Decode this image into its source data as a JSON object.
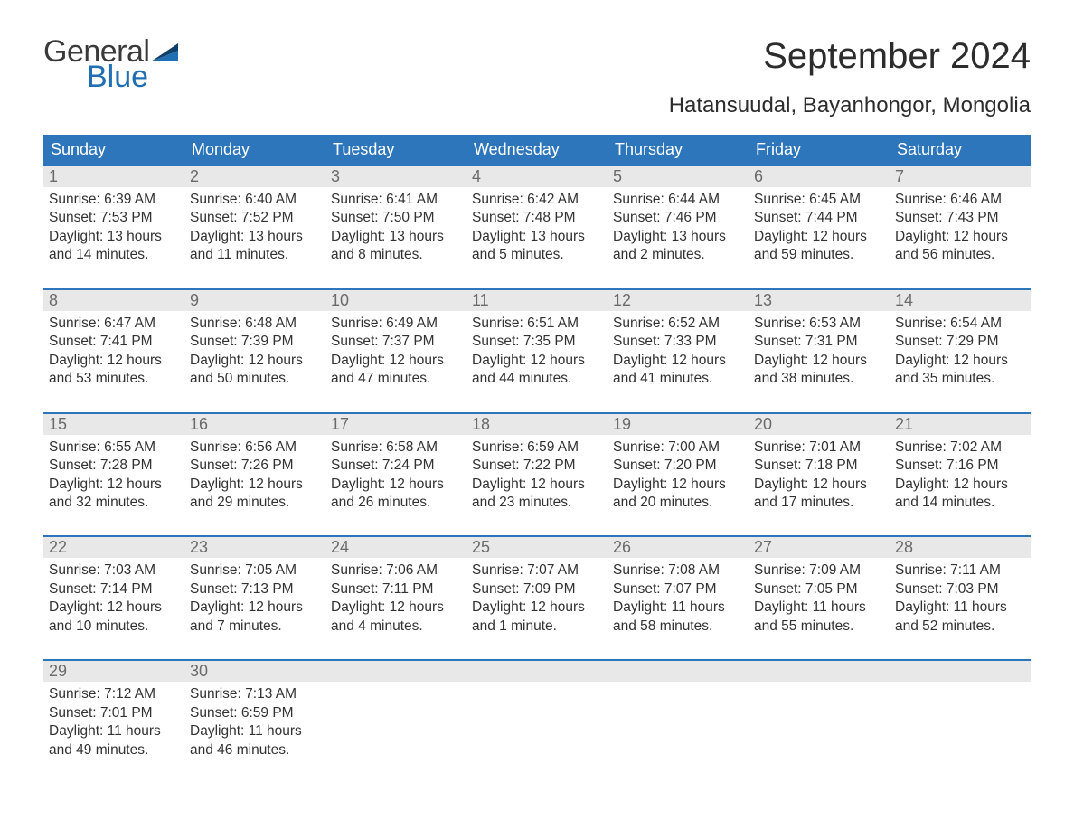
{
  "logo": {
    "general": "General",
    "blue": "Blue"
  },
  "title": "September 2024",
  "location": "Hatansuudal, Bayanhongor, Mongolia",
  "weekdays": [
    "Sunday",
    "Monday",
    "Tuesday",
    "Wednesday",
    "Thursday",
    "Friday",
    "Saturday"
  ],
  "colors": {
    "header_bg": "#2d76bb",
    "accent_blue": "#1f6fb2",
    "daynum_bg": "#e8e8e8",
    "text": "#323232"
  },
  "layout": {
    "columns": 7,
    "rows": 5,
    "cell_border_top": "#2d76bb"
  },
  "days": [
    {
      "n": "1",
      "sunrise": "Sunrise: 6:39 AM",
      "sunset": "Sunset: 7:53 PM",
      "daylight": "Daylight: 13 hours and 14 minutes."
    },
    {
      "n": "2",
      "sunrise": "Sunrise: 6:40 AM",
      "sunset": "Sunset: 7:52 PM",
      "daylight": "Daylight: 13 hours and 11 minutes."
    },
    {
      "n": "3",
      "sunrise": "Sunrise: 6:41 AM",
      "sunset": "Sunset: 7:50 PM",
      "daylight": "Daylight: 13 hours and 8 minutes."
    },
    {
      "n": "4",
      "sunrise": "Sunrise: 6:42 AM",
      "sunset": "Sunset: 7:48 PM",
      "daylight": "Daylight: 13 hours and 5 minutes."
    },
    {
      "n": "5",
      "sunrise": "Sunrise: 6:44 AM",
      "sunset": "Sunset: 7:46 PM",
      "daylight": "Daylight: 13 hours and 2 minutes."
    },
    {
      "n": "6",
      "sunrise": "Sunrise: 6:45 AM",
      "sunset": "Sunset: 7:44 PM",
      "daylight": "Daylight: 12 hours and 59 minutes."
    },
    {
      "n": "7",
      "sunrise": "Sunrise: 6:46 AM",
      "sunset": "Sunset: 7:43 PM",
      "daylight": "Daylight: 12 hours and 56 minutes."
    },
    {
      "n": "8",
      "sunrise": "Sunrise: 6:47 AM",
      "sunset": "Sunset: 7:41 PM",
      "daylight": "Daylight: 12 hours and 53 minutes."
    },
    {
      "n": "9",
      "sunrise": "Sunrise: 6:48 AM",
      "sunset": "Sunset: 7:39 PM",
      "daylight": "Daylight: 12 hours and 50 minutes."
    },
    {
      "n": "10",
      "sunrise": "Sunrise: 6:49 AM",
      "sunset": "Sunset: 7:37 PM",
      "daylight": "Daylight: 12 hours and 47 minutes."
    },
    {
      "n": "11",
      "sunrise": "Sunrise: 6:51 AM",
      "sunset": "Sunset: 7:35 PM",
      "daylight": "Daylight: 12 hours and 44 minutes."
    },
    {
      "n": "12",
      "sunrise": "Sunrise: 6:52 AM",
      "sunset": "Sunset: 7:33 PM",
      "daylight": "Daylight: 12 hours and 41 minutes."
    },
    {
      "n": "13",
      "sunrise": "Sunrise: 6:53 AM",
      "sunset": "Sunset: 7:31 PM",
      "daylight": "Daylight: 12 hours and 38 minutes."
    },
    {
      "n": "14",
      "sunrise": "Sunrise: 6:54 AM",
      "sunset": "Sunset: 7:29 PM",
      "daylight": "Daylight: 12 hours and 35 minutes."
    },
    {
      "n": "15",
      "sunrise": "Sunrise: 6:55 AM",
      "sunset": "Sunset: 7:28 PM",
      "daylight": "Daylight: 12 hours and 32 minutes."
    },
    {
      "n": "16",
      "sunrise": "Sunrise: 6:56 AM",
      "sunset": "Sunset: 7:26 PM",
      "daylight": "Daylight: 12 hours and 29 minutes."
    },
    {
      "n": "17",
      "sunrise": "Sunrise: 6:58 AM",
      "sunset": "Sunset: 7:24 PM",
      "daylight": "Daylight: 12 hours and 26 minutes."
    },
    {
      "n": "18",
      "sunrise": "Sunrise: 6:59 AM",
      "sunset": "Sunset: 7:22 PM",
      "daylight": "Daylight: 12 hours and 23 minutes."
    },
    {
      "n": "19",
      "sunrise": "Sunrise: 7:00 AM",
      "sunset": "Sunset: 7:20 PM",
      "daylight": "Daylight: 12 hours and 20 minutes."
    },
    {
      "n": "20",
      "sunrise": "Sunrise: 7:01 AM",
      "sunset": "Sunset: 7:18 PM",
      "daylight": "Daylight: 12 hours and 17 minutes."
    },
    {
      "n": "21",
      "sunrise": "Sunrise: 7:02 AM",
      "sunset": "Sunset: 7:16 PM",
      "daylight": "Daylight: 12 hours and 14 minutes."
    },
    {
      "n": "22",
      "sunrise": "Sunrise: 7:03 AM",
      "sunset": "Sunset: 7:14 PM",
      "daylight": "Daylight: 12 hours and 10 minutes."
    },
    {
      "n": "23",
      "sunrise": "Sunrise: 7:05 AM",
      "sunset": "Sunset: 7:13 PM",
      "daylight": "Daylight: 12 hours and 7 minutes."
    },
    {
      "n": "24",
      "sunrise": "Sunrise: 7:06 AM",
      "sunset": "Sunset: 7:11 PM",
      "daylight": "Daylight: 12 hours and 4 minutes."
    },
    {
      "n": "25",
      "sunrise": "Sunrise: 7:07 AM",
      "sunset": "Sunset: 7:09 PM",
      "daylight": "Daylight: 12 hours and 1 minute."
    },
    {
      "n": "26",
      "sunrise": "Sunrise: 7:08 AM",
      "sunset": "Sunset: 7:07 PM",
      "daylight": "Daylight: 11 hours and 58 minutes."
    },
    {
      "n": "27",
      "sunrise": "Sunrise: 7:09 AM",
      "sunset": "Sunset: 7:05 PM",
      "daylight": "Daylight: 11 hours and 55 minutes."
    },
    {
      "n": "28",
      "sunrise": "Sunrise: 7:11 AM",
      "sunset": "Sunset: 7:03 PM",
      "daylight": "Daylight: 11 hours and 52 minutes."
    },
    {
      "n": "29",
      "sunrise": "Sunrise: 7:12 AM",
      "sunset": "Sunset: 7:01 PM",
      "daylight": "Daylight: 11 hours and 49 minutes."
    },
    {
      "n": "30",
      "sunrise": "Sunrise: 7:13 AM",
      "sunset": "Sunset: 6:59 PM",
      "daylight": "Daylight: 11 hours and 46 minutes."
    }
  ]
}
